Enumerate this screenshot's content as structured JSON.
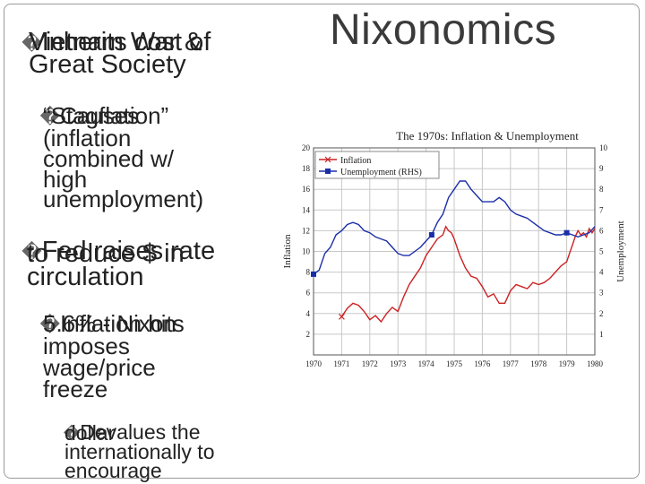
{
  "slide": {
    "title": "Nixonomics",
    "bullets": {
      "b1": {
        "glyph": "�",
        "lines": [
          "Inherits cost of",
          "Vietnam War &",
          "Great Society"
        ]
      },
      "b2": {
        "glyph": "�",
        "lines": [
          "Causes",
          "“Stagflation”",
          "(inflation",
          "combined w/",
          "high",
          "unemployment)"
        ]
      },
      "b3": {
        "glyph": "�",
        "lines": [
          "Fed raises rate",
          "to reduce $ in",
          "circulation"
        ]
      },
      "b4": {
        "glyph": "�",
        "lines": [
          "Inflation hits",
          "5.6% - Nixon",
          "imposes",
          "wage/price",
          "freeze"
        ]
      },
      "b5": {
        "glyph": "�",
        "lines": [
          "Devalues the",
          "dollar",
          "internationally to",
          "encourage"
        ]
      }
    }
  },
  "chart_data": {
    "type": "line",
    "title": "The 1970s: Inflation & Unemployment",
    "ylabel": "Inflation",
    "y2label": "Unemployment",
    "xlim": [
      1970,
      1980
    ],
    "ylim": [
      0,
      20
    ],
    "y2lim": [
      0,
      10
    ],
    "x_ticks": [
      "1970",
      "1971",
      "1972",
      "1973",
      "1974",
      "1975",
      "1976",
      "1977",
      "1978",
      "1979",
      "1980"
    ],
    "y_ticks": [
      "2",
      "4",
      "6",
      "8",
      "10",
      "12",
      "14",
      "16",
      "18",
      "20"
    ],
    "y2_ticks": [
      "1",
      "2",
      "3",
      "4",
      "5",
      "6",
      "7",
      "8",
      "9",
      "10"
    ],
    "grid": true,
    "legend_position": "top-left",
    "series": [
      {
        "name": "Inflation",
        "axis": "left",
        "color": "#cc2222",
        "marker": "x",
        "points": [
          [
            1971.0,
            3.7
          ],
          [
            1971.2,
            4.5
          ],
          [
            1971.4,
            5.0
          ],
          [
            1971.6,
            4.8
          ],
          [
            1971.8,
            4.2
          ],
          [
            1972.0,
            3.4
          ],
          [
            1972.2,
            3.8
          ],
          [
            1972.4,
            3.2
          ],
          [
            1972.6,
            4.0
          ],
          [
            1972.8,
            4.6
          ],
          [
            1973.0,
            4.2
          ],
          [
            1973.2,
            5.6
          ],
          [
            1973.4,
            6.8
          ],
          [
            1973.6,
            7.6
          ],
          [
            1973.8,
            8.4
          ],
          [
            1974.0,
            9.6
          ],
          [
            1974.2,
            10.4
          ],
          [
            1974.4,
            11.2
          ],
          [
            1974.6,
            11.6
          ],
          [
            1974.7,
            12.4
          ],
          [
            1974.8,
            12.0
          ],
          [
            1974.9,
            11.8
          ],
          [
            1975.0,
            11.2
          ],
          [
            1975.2,
            9.6
          ],
          [
            1975.4,
            8.4
          ],
          [
            1975.6,
            7.6
          ],
          [
            1975.8,
            7.4
          ],
          [
            1976.0,
            6.6
          ],
          [
            1976.2,
            5.6
          ],
          [
            1976.4,
            5.9
          ],
          [
            1976.6,
            5.0
          ],
          [
            1976.8,
            5.0
          ],
          [
            1977.0,
            6.2
          ],
          [
            1977.2,
            6.8
          ],
          [
            1977.4,
            6.6
          ],
          [
            1977.6,
            6.4
          ],
          [
            1977.8,
            7.0
          ],
          [
            1978.0,
            6.8
          ],
          [
            1978.2,
            7.0
          ],
          [
            1978.4,
            7.4
          ],
          [
            1978.6,
            8.0
          ],
          [
            1978.8,
            8.6
          ],
          [
            1979.0,
            9.0
          ],
          [
            1979.1,
            9.8
          ],
          [
            1979.2,
            10.6
          ],
          [
            1979.3,
            11.4
          ],
          [
            1979.4,
            12.0
          ],
          [
            1979.5,
            11.6
          ],
          [
            1979.6,
            11.8
          ],
          [
            1979.7,
            11.4
          ],
          [
            1979.8,
            12.2
          ],
          [
            1979.9,
            11.8
          ],
          [
            1980.0,
            12.2
          ]
        ]
      },
      {
        "name": "Unemployment (RHS)",
        "axis": "right",
        "color": "#1a2ea8",
        "marker": "square",
        "points": [
          [
            1970.0,
            3.9
          ],
          [
            1970.2,
            4.1
          ],
          [
            1970.4,
            4.9
          ],
          [
            1970.6,
            5.2
          ],
          [
            1970.8,
            5.8
          ],
          [
            1971.0,
            6.0
          ],
          [
            1971.2,
            6.3
          ],
          [
            1971.4,
            6.4
          ],
          [
            1971.6,
            6.3
          ],
          [
            1971.8,
            6.0
          ],
          [
            1972.0,
            5.9
          ],
          [
            1972.2,
            5.7
          ],
          [
            1972.4,
            5.6
          ],
          [
            1972.6,
            5.5
          ],
          [
            1972.8,
            5.2
          ],
          [
            1973.0,
            4.9
          ],
          [
            1973.2,
            4.8
          ],
          [
            1973.4,
            4.8
          ],
          [
            1973.6,
            5.0
          ],
          [
            1973.8,
            5.2
          ],
          [
            1974.0,
            5.5
          ],
          [
            1974.2,
            5.8
          ],
          [
            1974.4,
            6.4
          ],
          [
            1974.6,
            6.8
          ],
          [
            1974.8,
            7.6
          ],
          [
            1975.0,
            8.0
          ],
          [
            1975.2,
            8.4
          ],
          [
            1975.4,
            8.4
          ],
          [
            1975.6,
            8.0
          ],
          [
            1975.8,
            7.7
          ],
          [
            1976.0,
            7.4
          ],
          [
            1976.2,
            7.4
          ],
          [
            1976.4,
            7.4
          ],
          [
            1976.6,
            7.6
          ],
          [
            1976.8,
            7.4
          ],
          [
            1977.0,
            7.0
          ],
          [
            1977.2,
            6.8
          ],
          [
            1977.4,
            6.7
          ],
          [
            1977.6,
            6.6
          ],
          [
            1977.8,
            6.4
          ],
          [
            1978.0,
            6.2
          ],
          [
            1978.2,
            6.0
          ],
          [
            1978.4,
            5.9
          ],
          [
            1978.6,
            5.8
          ],
          [
            1978.8,
            5.8
          ],
          [
            1979.0,
            5.9
          ],
          [
            1979.2,
            5.8
          ],
          [
            1979.4,
            5.7
          ],
          [
            1979.6,
            5.8
          ],
          [
            1979.8,
            5.9
          ],
          [
            1980.0,
            6.2
          ]
        ]
      }
    ]
  }
}
